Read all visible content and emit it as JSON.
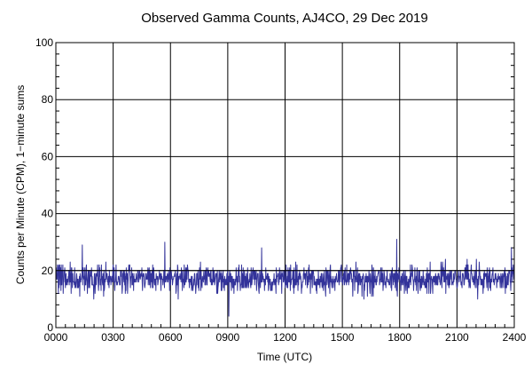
{
  "chart_data": {
    "type": "line",
    "title": "Observed Gamma Counts, AJ4CO, 29 Dec 2019",
    "xlabel": "Time (UTC)",
    "ylabel": "Counts per Minute (CPM), 1−minute sums",
    "xlim": [
      0,
      24
    ],
    "ylim": [
      0,
      100
    ],
    "x_ticks": [
      "0000",
      "0300",
      "0600",
      "0900",
      "1200",
      "1500",
      "1800",
      "2100",
      "2400"
    ],
    "y_ticks": [
      "0",
      "20",
      "40",
      "60",
      "80",
      "100"
    ],
    "grid": true,
    "series": [
      {
        "color": "#33339a",
        "sampling": "1-minute sums, one point per minute (1440 points)",
        "mean": 17,
        "min": 4,
        "max": 31,
        "noise_seed": 29122019,
        "notable_points": [
          {
            "time": "0123",
            "value": 29
          },
          {
            "time": "0542",
            "value": 30
          },
          {
            "time": "0903",
            "value": 4
          },
          {
            "time": "1046",
            "value": 28
          },
          {
            "time": "1750",
            "value": 31
          },
          {
            "time": "2350",
            "value": 28
          }
        ]
      }
    ]
  }
}
